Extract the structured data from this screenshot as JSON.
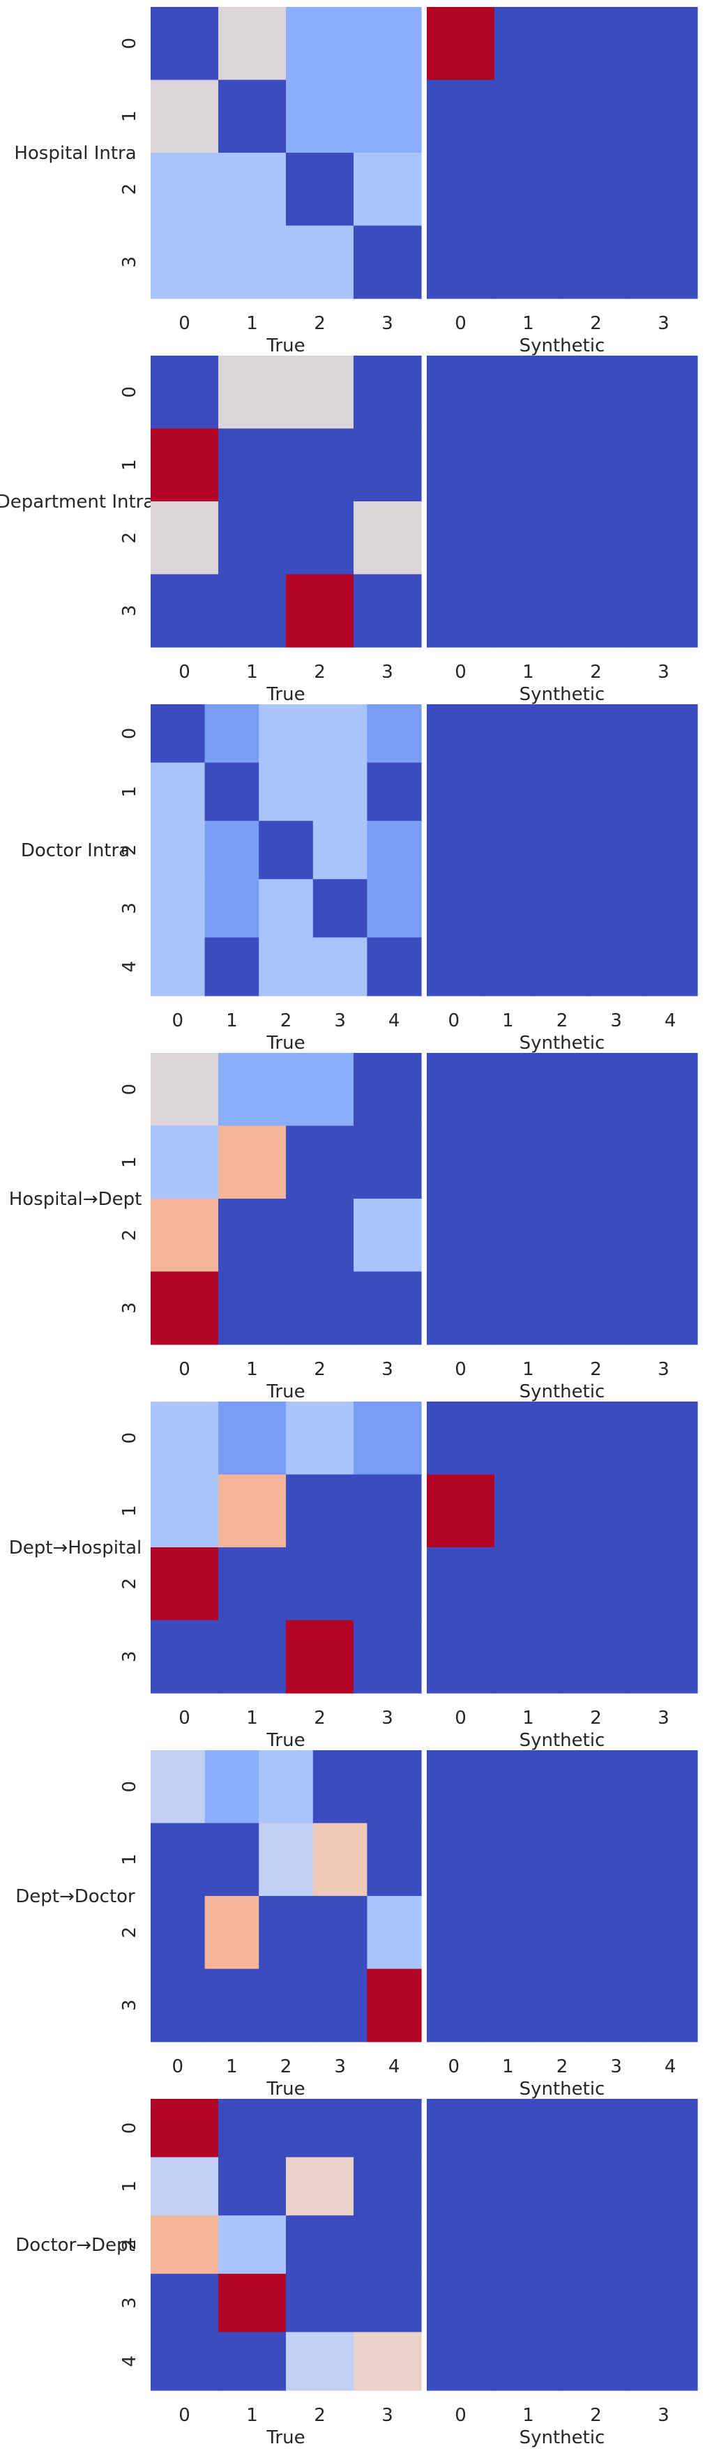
{
  "colors": {
    "scale": [
      "#3b4cc0",
      "#6788ee",
      "#9abbff",
      "#c9d7f0",
      "#edd1c2",
      "#f7a889",
      "#e26952",
      "#b40426"
    ]
  },
  "chart_data": [
    {
      "type": "heatmap",
      "row_label": "Hospital Intra",
      "ylabels": [
        "0",
        "1",
        "2",
        "3"
      ],
      "panels": [
        {
          "xlabel": "True",
          "xticks": [
            "0",
            "1",
            "2",
            "3"
          ],
          "values": [
            [
              0.0,
              0.5,
              0.25,
              0.25
            ],
            [
              0.5,
              0.0,
              0.25,
              0.25
            ],
            [
              0.33,
              0.33,
              0.0,
              0.33
            ],
            [
              0.33,
              0.33,
              0.33,
              0.0
            ]
          ]
        },
        {
          "xlabel": "Synthetic",
          "xticks": [
            "0",
            "1",
            "2",
            "3"
          ],
          "values": [
            [
              1.0,
              0.0,
              0.0,
              0.0
            ],
            [
              0.0,
              0.0,
              0.0,
              0.0
            ],
            [
              0.0,
              0.0,
              0.0,
              0.0
            ],
            [
              0.0,
              0.0,
              0.0,
              0.0
            ]
          ]
        }
      ]
    },
    {
      "type": "heatmap",
      "row_label": "Department Intra",
      "ylabels": [
        "0",
        "1",
        "2",
        "3"
      ],
      "panels": [
        {
          "xlabel": "True",
          "xticks": [
            "0",
            "1",
            "2",
            "3"
          ],
          "values": [
            [
              0.0,
              0.5,
              0.5,
              0.0
            ],
            [
              1.0,
              0.0,
              0.0,
              0.0
            ],
            [
              0.5,
              0.0,
              0.0,
              0.5
            ],
            [
              0.0,
              0.0,
              1.0,
              0.0
            ]
          ]
        },
        {
          "xlabel": "Synthetic",
          "xticks": [
            "0",
            "1",
            "2",
            "3"
          ],
          "values": [
            [
              0,
              0,
              0,
              0
            ],
            [
              0,
              0,
              0,
              0
            ],
            [
              0,
              0,
              0,
              0
            ],
            [
              0,
              0,
              0,
              0
            ]
          ]
        }
      ]
    },
    {
      "type": "heatmap",
      "row_label": "Doctor Intra",
      "ylabels": [
        "0",
        "1",
        "2",
        "3",
        "4"
      ],
      "panels": [
        {
          "xlabel": "True",
          "xticks": [
            "0",
            "1",
            "2",
            "3",
            "4"
          ],
          "values": [
            [
              0.0,
              0.2,
              0.33,
              0.33,
              0.2
            ],
            [
              0.33,
              0.0,
              0.33,
              0.33,
              0.0
            ],
            [
              0.33,
              0.2,
              0.0,
              0.33,
              0.2
            ],
            [
              0.33,
              0.2,
              0.33,
              0.0,
              0.2
            ],
            [
              0.33,
              0.0,
              0.33,
              0.33,
              0.0
            ]
          ]
        },
        {
          "xlabel": "Synthetic",
          "xticks": [
            "0",
            "1",
            "2",
            "3",
            "4"
          ],
          "values": [
            [
              0,
              0,
              0,
              0,
              0
            ],
            [
              0,
              0,
              0,
              0,
              0
            ],
            [
              0,
              0,
              0,
              0,
              0
            ],
            [
              0,
              0,
              0,
              0,
              0
            ],
            [
              0,
              0,
              0,
              0,
              0
            ]
          ]
        }
      ]
    },
    {
      "type": "heatmap",
      "row_label": "Hospital→Dept",
      "ylabels": [
        "0",
        "1",
        "2",
        "3"
      ],
      "panels": [
        {
          "xlabel": "True",
          "xticks": [
            "0",
            "1",
            "2",
            "3"
          ],
          "values": [
            [
              0.5,
              0.25,
              0.25,
              0.0
            ],
            [
              0.33,
              0.67,
              0.0,
              0.0
            ],
            [
              0.67,
              0.0,
              0.0,
              0.33
            ],
            [
              1.0,
              0.0,
              0.0,
              0.0
            ]
          ]
        },
        {
          "xlabel": "Synthetic",
          "xticks": [
            "0",
            "1",
            "2",
            "3"
          ],
          "values": [
            [
              0,
              0,
              0,
              0
            ],
            [
              0,
              0,
              0,
              0
            ],
            [
              0,
              0,
              0,
              0
            ],
            [
              0,
              0,
              0,
              0
            ]
          ]
        }
      ]
    },
    {
      "type": "heatmap",
      "row_label": "Dept→Hospital",
      "ylabels": [
        "0",
        "1",
        "2",
        "3"
      ],
      "panels": [
        {
          "xlabel": "True",
          "xticks": [
            "0",
            "1",
            "2",
            "3"
          ],
          "values": [
            [
              0.33,
              0.2,
              0.33,
              0.2
            ],
            [
              0.33,
              0.67,
              0.0,
              0.0
            ],
            [
              1.0,
              0.0,
              0.0,
              0.0
            ],
            [
              0.0,
              0.0,
              1.0,
              0.0
            ]
          ]
        },
        {
          "xlabel": "Synthetic",
          "xticks": [
            "0",
            "1",
            "2",
            "3"
          ],
          "values": [
            [
              0.0,
              0.0,
              0.0,
              0.0
            ],
            [
              1.0,
              0.0,
              0.0,
              0.0
            ],
            [
              0.0,
              0.0,
              0.0,
              0.0
            ],
            [
              0.0,
              0.0,
              0.0,
              0.0
            ]
          ]
        }
      ]
    },
    {
      "type": "heatmap",
      "row_label": "Dept→Doctor",
      "ylabels": [
        "0",
        "1",
        "2",
        "3"
      ],
      "panels": [
        {
          "xlabel": "True",
          "xticks": [
            "0",
            "1",
            "2",
            "3",
            "4"
          ],
          "values": [
            [
              0.4,
              0.25,
              0.33,
              0.0,
              0.0
            ],
            [
              0.0,
              0.0,
              0.4,
              0.6,
              0.0
            ],
            [
              0.0,
              0.67,
              0.0,
              0.0,
              0.33
            ],
            [
              0.0,
              0.0,
              0.0,
              0.0,
              1.0
            ]
          ]
        },
        {
          "xlabel": "Synthetic",
          "xticks": [
            "0",
            "1",
            "2",
            "3",
            "4"
          ],
          "values": [
            [
              0,
              0,
              0,
              0,
              0
            ],
            [
              0,
              0,
              0,
              0,
              0
            ],
            [
              0,
              0,
              0,
              0,
              0
            ],
            [
              0,
              0,
              0,
              0,
              0
            ]
          ]
        }
      ]
    },
    {
      "type": "heatmap",
      "row_label": "Doctor→Dept",
      "ylabels": [
        "0",
        "1",
        "2",
        "3",
        "4"
      ],
      "panels": [
        {
          "xlabel": "True",
          "xticks": [
            "0",
            "1",
            "2",
            "3"
          ],
          "values": [
            [
              1.0,
              0.0,
              0.0,
              0.0
            ],
            [
              0.4,
              0.0,
              0.55,
              0.0
            ],
            [
              0.67,
              0.33,
              0.0,
              0.0
            ],
            [
              0.0,
              1.0,
              0.0,
              0.0
            ],
            [
              0.0,
              0.0,
              0.4,
              0.55
            ]
          ]
        },
        {
          "xlabel": "Synthetic",
          "xticks": [
            "0",
            "1",
            "2",
            "3"
          ],
          "values": [
            [
              0,
              0,
              0,
              0
            ],
            [
              0,
              0,
              0,
              0
            ],
            [
              0,
              0,
              0,
              0
            ],
            [
              0,
              0,
              0,
              0
            ],
            [
              0,
              0,
              0,
              0
            ]
          ]
        }
      ]
    }
  ]
}
